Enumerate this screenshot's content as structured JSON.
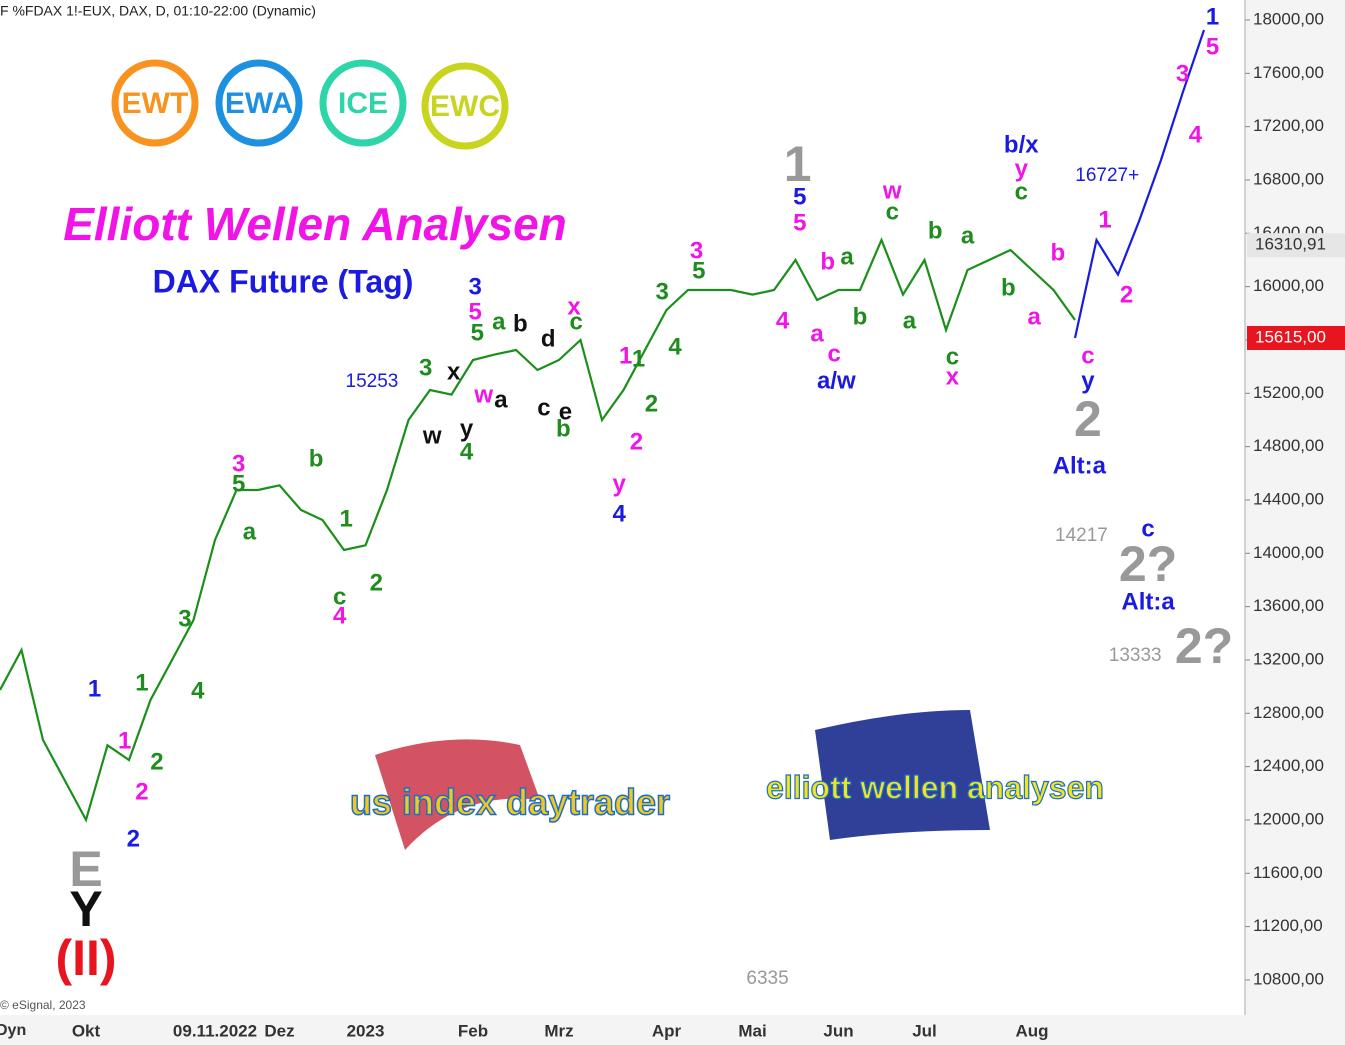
{
  "header": "F %FDAX 1!-EUX, DAX, D, 01:10-22:00 (Dynamic)",
  "copyright": "© eSignal, 2023",
  "axis_button": "Dyn",
  "logos": [
    "EWT",
    "EWA",
    "ICE",
    "EWC"
  ],
  "watermarks": [
    "us index daytrader",
    "elliott wellen analysen"
  ],
  "chart_data": {
    "type": "line",
    "title": "Elliott Wellen Analysen",
    "subtitle": "DAX Future (Tag)",
    "categories": [
      null,
      null,
      null,
      null,
      "Okt",
      null,
      null,
      null,
      null,
      null,
      "09.11.2022",
      null,
      null,
      "Dez",
      null,
      null,
      null,
      "2023",
      null,
      null,
      null,
      null,
      "Feb",
      null,
      null,
      null,
      "Mrz",
      null,
      null,
      null,
      null,
      "Apr",
      null,
      null,
      null,
      "Mai",
      null,
      null,
      null,
      "Jun",
      null,
      null,
      null,
      "Jul",
      null,
      null,
      null,
      null,
      "Aug",
      null,
      null,
      null,
      null,
      null,
      null,
      null,
      null
    ],
    "series": [
      {
        "name": "FDAX",
        "color": "#1a8f1a",
        "values": [
          12975,
          13275,
          12600,
          12300,
          12000,
          12560,
          12450,
          12900,
          13200,
          13500,
          14100,
          14475,
          14475,
          14510,
          14325,
          14250,
          14025,
          14060,
          14475,
          15000,
          15225,
          15190,
          15450,
          15490,
          15525,
          15375,
          15450,
          15600,
          15000,
          15225,
          15525,
          15825,
          15975,
          15975,
          15975,
          15940,
          15975,
          16200,
          15900,
          15975,
          15975,
          16350,
          15940,
          16200,
          15675,
          16125,
          16200,
          16275,
          16125,
          15975,
          15750,
          null,
          null,
          null,
          null,
          null,
          null
        ]
      },
      {
        "name": "Projection",
        "color": "#1a1ae0",
        "values": [
          null,
          null,
          null,
          null,
          null,
          null,
          null,
          null,
          null,
          null,
          null,
          null,
          null,
          null,
          null,
          null,
          null,
          null,
          null,
          null,
          null,
          null,
          null,
          null,
          null,
          null,
          null,
          null,
          null,
          null,
          null,
          null,
          null,
          null,
          null,
          null,
          null,
          null,
          null,
          null,
          null,
          null,
          null,
          null,
          null,
          null,
          null,
          null,
          null,
          null,
          15615,
          16350,
          16090,
          16500,
          16950,
          17450,
          17925
        ]
      }
    ],
    "ylim": [
      10537,
      18150
    ],
    "yticks": [
      {
        "value": 10800,
        "label": "10800,00"
      },
      {
        "value": 11200,
        "label": "11200,00"
      },
      {
        "value": 11600,
        "label": "11600,00"
      },
      {
        "value": 12000,
        "label": "12000,00"
      },
      {
        "value": 12400,
        "label": "12400,00"
      },
      {
        "value": 12800,
        "label": "12800,00"
      },
      {
        "value": 13200,
        "label": "13200,00"
      },
      {
        "value": 13600,
        "label": "13600,00"
      },
      {
        "value": 14000,
        "label": "14000,00"
      },
      {
        "value": 14400,
        "label": "14400,00"
      },
      {
        "value": 14800,
        "label": "14800,00"
      },
      {
        "value": 15200,
        "label": "15200,00"
      },
      {
        "value": 15600,
        "label": "15600,00"
      },
      {
        "value": 16000,
        "label": "16000,00"
      },
      {
        "value": 16400,
        "label": "16400,00"
      },
      {
        "value": 16800,
        "label": "16800,00"
      },
      {
        "value": 17200,
        "label": "17200,00"
      },
      {
        "value": 17600,
        "label": "17600,00"
      },
      {
        "value": 18000,
        "label": "18000,00"
      }
    ],
    "price_tags": [
      {
        "value": 16310.91,
        "label": "16310,91",
        "color": "#e6e6e6"
      },
      {
        "value": 15615,
        "label": "15615,00",
        "color": "#e8141e"
      }
    ],
    "labels": [
      {
        "text": "1",
        "color": "#1a1ae0",
        "x": 4.4,
        "y": 12975
      },
      {
        "text": "2",
        "color": "#1a1ae0",
        "x": 6.2,
        "y": 11850
      },
      {
        "text": "1",
        "color": "#f014e6",
        "x": 5.8,
        "y": 12585
      },
      {
        "text": "2",
        "color": "#f014e6",
        "x": 6.6,
        "y": 12200
      },
      {
        "text": "2",
        "color": "#1e8c1e",
        "x": 7.3,
        "y": 12425
      },
      {
        "text": "1",
        "color": "#1e8c1e",
        "x": 6.6,
        "y": 13020
      },
      {
        "text": "3",
        "color": "#1e8c1e",
        "x": 8.6,
        "y": 13500
      },
      {
        "text": "4",
        "color": "#1e8c1e",
        "x": 9.2,
        "y": 12960
      },
      {
        "text": "3",
        "color": "#f014e6",
        "x": 11.1,
        "y": 14662
      },
      {
        "text": "5",
        "color": "#1e8c1e",
        "x": 11.1,
        "y": 14512
      },
      {
        "text": "a",
        "color": "#1e8c1e",
        "x": 11.6,
        "y": 14150
      },
      {
        "text": "b",
        "color": "#1e8c1e",
        "x": 14.7,
        "y": 14700
      },
      {
        "text": "1",
        "color": "#1e8c1e",
        "x": 16.1,
        "y": 14250
      },
      {
        "text": "2",
        "color": "#1e8c1e",
        "x": 17.5,
        "y": 13770
      },
      {
        "text": "c",
        "color": "#1e8c1e",
        "x": 15.8,
        "y": 13665
      },
      {
        "text": "4",
        "color": "#f014e6",
        "x": 15.8,
        "y": 13522
      },
      {
        "text": "3",
        "color": "#1e8c1e",
        "x": 19.8,
        "y": 15382
      },
      {
        "text": "15253",
        "color": "#1a1ae0",
        "x": 17.3,
        "y": 15285
      },
      {
        "text": "x",
        "color": "#111111",
        "x": 21.1,
        "y": 15352
      },
      {
        "text": "w",
        "color": "#111111",
        "x": 20.1,
        "y": 14872
      },
      {
        "text": "y",
        "color": "#111111",
        "x": 21.7,
        "y": 14925
      },
      {
        "text": "4",
        "color": "#1e8c1e",
        "x": 21.7,
        "y": 14752
      },
      {
        "text": "3",
        "color": "#1a1ae0",
        "x": 22.1,
        "y": 15990
      },
      {
        "text": "5",
        "color": "#f014e6",
        "x": 22.1,
        "y": 15802
      },
      {
        "text": "5",
        "color": "#1e8c1e",
        "x": 22.2,
        "y": 15645
      },
      {
        "text": "a",
        "color": "#1e8c1e",
        "x": 23.2,
        "y": 15727
      },
      {
        "text": "b",
        "color": "#111111",
        "x": 24.2,
        "y": 15712
      },
      {
        "text": "d",
        "color": "#111111",
        "x": 25.5,
        "y": 15600
      },
      {
        "text": "w",
        "color": "#f014e6",
        "x": 22.5,
        "y": 15180
      },
      {
        "text": "a",
        "color": "#111111",
        "x": 23.3,
        "y": 15142
      },
      {
        "text": "c",
        "color": "#111111",
        "x": 25.3,
        "y": 15082
      },
      {
        "text": "e",
        "color": "#111111",
        "x": 26.3,
        "y": 15052
      },
      {
        "text": "b",
        "color": "#1e8c1e",
        "x": 26.2,
        "y": 14925
      },
      {
        "text": "x",
        "color": "#f014e6",
        "x": 26.7,
        "y": 15840
      },
      {
        "text": "c",
        "color": "#1e8c1e",
        "x": 26.8,
        "y": 15727
      },
      {
        "text": "1",
        "color": "#f014e6",
        "x": 29.1,
        "y": 15472
      },
      {
        "text": "1",
        "color": "#1e8c1e",
        "x": 29.7,
        "y": 15450
      },
      {
        "text": "2",
        "color": "#1e8c1e",
        "x": 30.3,
        "y": 15112
      },
      {
        "text": "2",
        "color": "#f014e6",
        "x": 29.6,
        "y": 14827
      },
      {
        "text": "y",
        "color": "#f014e6",
        "x": 28.8,
        "y": 14512
      },
      {
        "text": "4",
        "color": "#1a1ae0",
        "x": 28.8,
        "y": 14287
      },
      {
        "text": "3",
        "color": "#1e8c1e",
        "x": 30.8,
        "y": 15952
      },
      {
        "text": "4",
        "color": "#1e8c1e",
        "x": 31.4,
        "y": 15540
      },
      {
        "text": "3",
        "color": "#f014e6",
        "x": 32.4,
        "y": 16260
      },
      {
        "text": "5",
        "color": "#1e8c1e",
        "x": 32.5,
        "y": 16110
      },
      {
        "text": "4",
        "color": "#f014e6",
        "x": 36.4,
        "y": 15735
      },
      {
        "text": "5",
        "color": "#1a1ae0",
        "x": 37.2,
        "y": 16665
      },
      {
        "text": "5",
        "color": "#f014e6",
        "x": 37.2,
        "y": 16470
      },
      {
        "text": "b",
        "color": "#f014e6",
        "x": 38.5,
        "y": 16177
      },
      {
        "text": "a",
        "color": "#1e8c1e",
        "x": 39.4,
        "y": 16215
      },
      {
        "text": "a",
        "color": "#f014e6",
        "x": 38,
        "y": 15637
      },
      {
        "text": "c",
        "color": "#f014e6",
        "x": 38.8,
        "y": 15487
      },
      {
        "text": "b",
        "color": "#1e8c1e",
        "x": 40,
        "y": 15765
      },
      {
        "text": "a/w",
        "color": "#1a1ae0",
        "x": 38.9,
        "y": 15285
      },
      {
        "text": "w",
        "color": "#f014e6",
        "x": 41.5,
        "y": 16710
      },
      {
        "text": "c",
        "color": "#1e8c1e",
        "x": 41.5,
        "y": 16552
      },
      {
        "text": "b",
        "color": "#1e8c1e",
        "x": 43.5,
        "y": 16410
      },
      {
        "text": "a",
        "color": "#1e8c1e",
        "x": 42.3,
        "y": 15735
      },
      {
        "text": "a",
        "color": "#1e8c1e",
        "x": 45,
        "y": 16372
      },
      {
        "text": "c",
        "color": "#1e8c1e",
        "x": 44.3,
        "y": 15465
      },
      {
        "text": "x",
        "color": "#f014e6",
        "x": 44.3,
        "y": 15315
      },
      {
        "text": "b",
        "color": "#1e8c1e",
        "x": 46.9,
        "y": 15982
      },
      {
        "text": "b/x",
        "color": "#1a1ae0",
        "x": 47.5,
        "y": 17055
      },
      {
        "text": "y",
        "color": "#f014e6",
        "x": 47.5,
        "y": 16875
      },
      {
        "text": "c",
        "color": "#1e8c1e",
        "x": 47.5,
        "y": 16702
      },
      {
        "text": "16727+",
        "color": "#1a1ae0",
        "x": 51.5,
        "y": 16830
      },
      {
        "text": "b",
        "color": "#f014e6",
        "x": 49.2,
        "y": 16245
      },
      {
        "text": "a",
        "color": "#f014e6",
        "x": 48.1,
        "y": 15765
      },
      {
        "text": "c",
        "color": "#f014e6",
        "x": 50.6,
        "y": 15472
      },
      {
        "text": "y",
        "color": "#1a1ae0",
        "x": 50.6,
        "y": 15285
      },
      {
        "text": "Alt:a",
        "color": "#1a1ae0",
        "x": 50.2,
        "y": 14647
      },
      {
        "text": "1",
        "color": "#f014e6",
        "x": 51.4,
        "y": 16492
      },
      {
        "text": "2",
        "color": "#f014e6",
        "x": 52.4,
        "y": 15930
      },
      {
        "text": "3",
        "color": "#f014e6",
        "x": 55,
        "y": 17587
      },
      {
        "text": "4",
        "color": "#f014e6",
        "x": 55.6,
        "y": 17130
      },
      {
        "text": "5",
        "color": "#f014e6",
        "x": 56.4,
        "y": 17790
      },
      {
        "text": "1",
        "color": "#1a1ae0",
        "x": 56.4,
        "y": 18015
      },
      {
        "text": "c",
        "color": "#1a1ae0",
        "x": 53.4,
        "y": 14175
      },
      {
        "text": "14217",
        "color": "#999999",
        "x": 50.3,
        "y": 14130
      },
      {
        "text": "Alt:a",
        "color": "#1a1ae0",
        "x": 53.4,
        "y": 13627
      },
      {
        "text": "13333",
        "color": "#999999",
        "x": 52.8,
        "y": 13230
      },
      {
        "text": "6335",
        "color": "#999999",
        "x": 35.7,
        "y": 10807
      }
    ],
    "large_labels": [
      {
        "text": "1",
        "color": "#999999",
        "x": 37.1,
        "y": 16890
      },
      {
        "text": "2",
        "color": "#999999",
        "x": 50.6,
        "y": 14977
      },
      {
        "text": "2?",
        "color": "#999999",
        "x": 53.4,
        "y": 13890
      },
      {
        "text": "2?",
        "color": "#999999",
        "x": 56,
        "y": 13275
      },
      {
        "text": "E",
        "color": "#999999",
        "x": 4,
        "y": 11602
      },
      {
        "text": "Y",
        "color": "#111111",
        "x": 4,
        "y": 11302
      },
      {
        "text": "(II)",
        "color": "#e8141e",
        "x": 4,
        "y": 10935
      }
    ]
  }
}
